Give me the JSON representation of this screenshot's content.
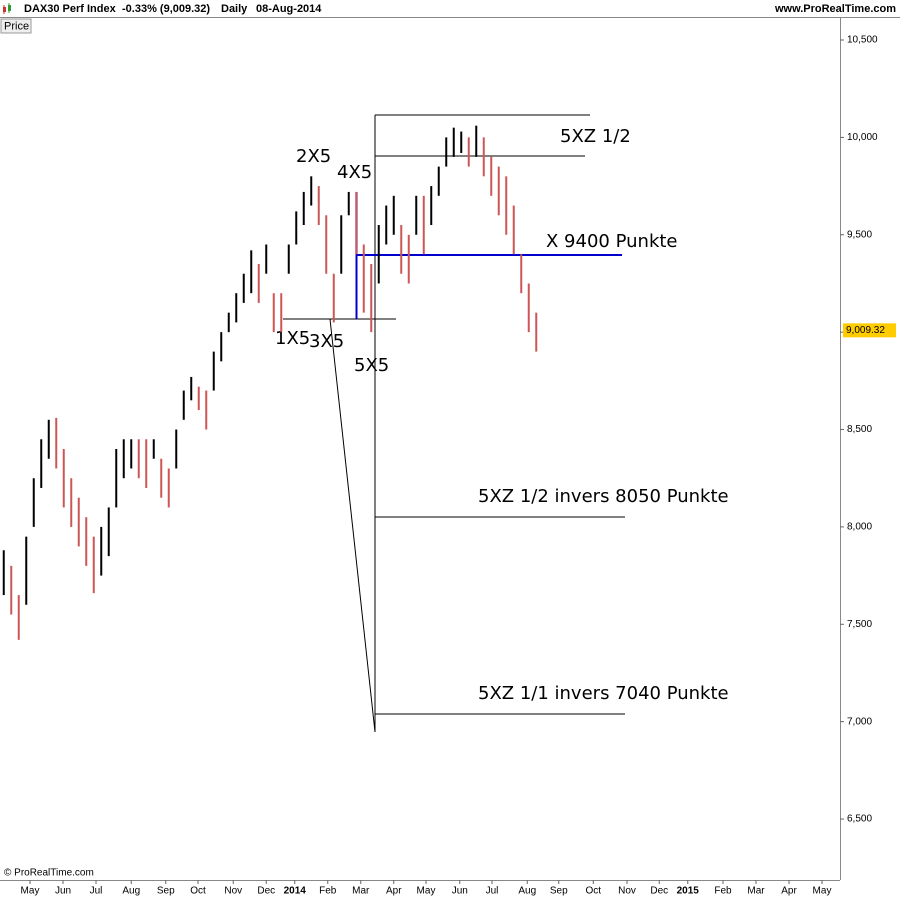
{
  "chart_data": {
    "type": "ohlc",
    "header": {
      "title": "DAX30 Perf Index",
      "change": "-0.33% (9,009.32)",
      "period": "Daily",
      "date": "08-Aug-2014",
      "source": "www.ProRealTime.com",
      "button": "Price",
      "copyright": "© ProRealTime.com"
    },
    "bars": {
      "high": [
        7880,
        7800,
        7650,
        7950,
        8250,
        8450,
        8550,
        8560,
        8400,
        8250,
        8150,
        8050,
        7950,
        8000,
        8100,
        8400,
        8450,
        8450,
        8450,
        8450,
        8450,
        8350,
        8300,
        8500,
        8700,
        8770,
        8720,
        8700,
        8900,
        9000,
        9100,
        9200,
        9300,
        9420,
        9350,
        9450,
        9200,
        9200,
        9450,
        9620,
        9720,
        9800,
        9750,
        9600,
        9300,
        9600,
        9720,
        9720,
        9450,
        9350,
        9550,
        9650,
        9700,
        9550,
        9500,
        9700,
        9700,
        9750,
        9850,
        10000,
        10050,
        10030,
        10000,
        10060,
        10000,
        9900,
        9850,
        9800,
        9650,
        9400,
        9250,
        9100
      ],
      "low": [
        7650,
        7550,
        7420,
        7600,
        8000,
        8200,
        8350,
        8300,
        8100,
        8000,
        7900,
        7800,
        7660,
        7750,
        7850,
        8100,
        8250,
        8300,
        8250,
        8200,
        8350,
        8150,
        8100,
        8300,
        8550,
        8650,
        8600,
        8500,
        8700,
        8850,
        9000,
        9050,
        9150,
        9200,
        9150,
        9300,
        9000,
        9000,
        9300,
        9450,
        9550,
        9650,
        9550,
        9300,
        9050,
        9300,
        9600,
        9400,
        9100,
        9000,
        9250,
        9450,
        9500,
        9300,
        9250,
        9500,
        9400,
        9550,
        9700,
        9850,
        9900,
        9920,
        9850,
        9900,
        9800,
        9700,
        9600,
        9500,
        9400,
        9200,
        9000,
        8900
      ],
      "up": [
        true,
        false,
        false,
        true,
        true,
        true,
        true,
        false,
        false,
        false,
        false,
        false,
        false,
        true,
        true,
        true,
        true,
        true,
        false,
        false,
        true,
        false,
        false,
        true,
        true,
        true,
        false,
        false,
        true,
        true,
        true,
        true,
        true,
        true,
        false,
        true,
        false,
        false,
        true,
        true,
        true,
        true,
        false,
        false,
        false,
        true,
        true,
        false,
        false,
        false,
        true,
        true,
        true,
        false,
        false,
        true,
        false,
        true,
        true,
        true,
        true,
        true,
        false,
        true,
        false,
        false,
        false,
        false,
        false,
        false,
        false,
        false
      ],
      "up_color": "#000000",
      "down_color": "#cc5555"
    },
    "xlim": [
      -0.5,
      111.5
    ],
    "xticks": [
      {
        "value": 3.5,
        "label": "May"
      },
      {
        "value": 7.9,
        "label": "Jun"
      },
      {
        "value": 12.3,
        "label": "Jul"
      },
      {
        "value": 17,
        "label": "Aug"
      },
      {
        "value": 21.6,
        "label": "Sep"
      },
      {
        "value": 25.9,
        "label": "Oct"
      },
      {
        "value": 30.6,
        "label": "Nov"
      },
      {
        "value": 35,
        "label": "Dec"
      },
      {
        "value": 38.8,
        "label": "2014"
      },
      {
        "value": 43.2,
        "label": "Feb"
      },
      {
        "value": 47.6,
        "label": "Mar"
      },
      {
        "value": 52,
        "label": "Apr"
      },
      {
        "value": 56.3,
        "label": "May"
      },
      {
        "value": 60.8,
        "label": "Jun"
      },
      {
        "value": 65.1,
        "label": "Jul"
      },
      {
        "value": 69.8,
        "label": "Aug"
      },
      {
        "value": 74,
        "label": "Sep"
      },
      {
        "value": 78.6,
        "label": "Oct"
      },
      {
        "value": 83.1,
        "label": "Nov"
      },
      {
        "value": 87.4,
        "label": "Dec"
      },
      {
        "value": 91.2,
        "label": "2015"
      },
      {
        "value": 95.9,
        "label": "Feb"
      },
      {
        "value": 100.3,
        "label": "Mar"
      },
      {
        "value": 104.7,
        "label": "Apr"
      },
      {
        "value": 109.1,
        "label": "May"
      }
    ],
    "ylim": [
      6187,
      10613
    ],
    "yticks": [
      {
        "value": 6500,
        "label": "6,500"
      },
      {
        "value": 7000,
        "label": "7,000"
      },
      {
        "value": 7500,
        "label": "7,500"
      },
      {
        "value": 8000,
        "label": "8,000"
      },
      {
        "value": 8500,
        "label": "8,500"
      },
      {
        "value": 9000,
        "label": "9,000"
      },
      {
        "value": 9500,
        "label": "9,500"
      },
      {
        "value": 10000,
        "label": "10,000"
      },
      {
        "value": 10500,
        "label": "10,500"
      }
    ],
    "last": {
      "value": 9009.32,
      "label": "9,009.32"
    },
    "annotations": [
      "1X5",
      "2X5",
      "3X5",
      "4X5",
      "5X5",
      "5XZ 1/2",
      "X 9400 Punkte",
      "5XZ 1/2 invers 8050 Punkte",
      "5XZ 1/1 invers 7040 Punkte"
    ]
  }
}
